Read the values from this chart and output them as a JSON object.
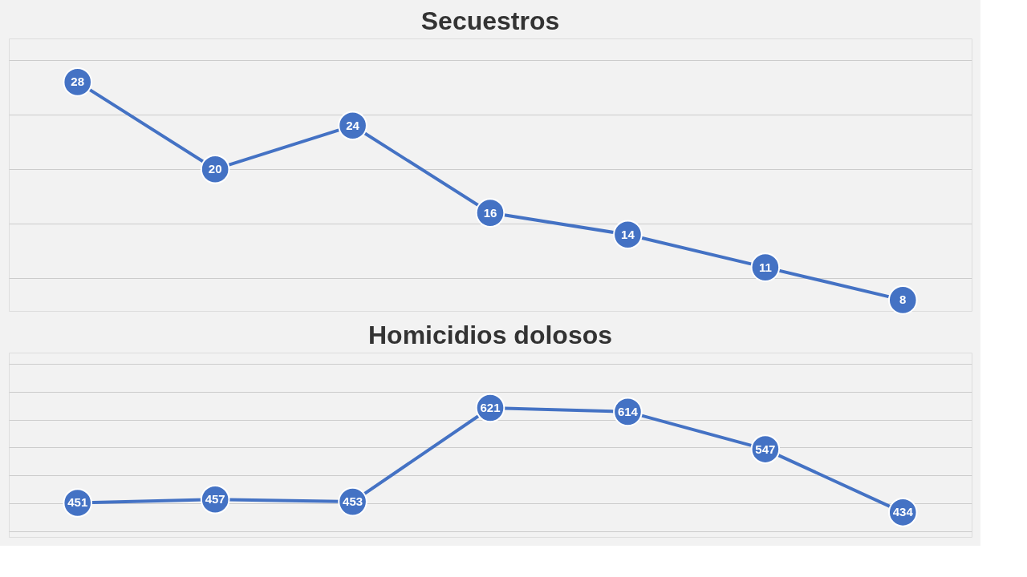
{
  "chart_data": [
    {
      "type": "line",
      "title": "Secuestros",
      "categories": [
        null,
        null,
        null,
        null,
        null,
        null,
        null
      ],
      "series": [
        {
          "color": "#4472c4",
          "values": [
            28,
            20,
            24,
            16,
            14,
            11,
            8
          ]
        }
      ],
      "ylim": [
        7,
        32
      ],
      "grid": "y",
      "tick_labels": false,
      "data_labels": true,
      "marker": "circle",
      "line_style": "solid"
    },
    {
      "type": "line",
      "title": "Homicidios dolosos",
      "categories": [
        null,
        null,
        null,
        null,
        null,
        null,
        null
      ],
      "series": [
        {
          "color": "#4472c4",
          "values": [
            451,
            457,
            453,
            621,
            614,
            547,
            434
          ]
        }
      ],
      "ylim": [
        390,
        720
      ],
      "grid": "y",
      "tick_labels": false,
      "data_labels": true,
      "marker": "circle",
      "line_style": "solid"
    }
  ]
}
